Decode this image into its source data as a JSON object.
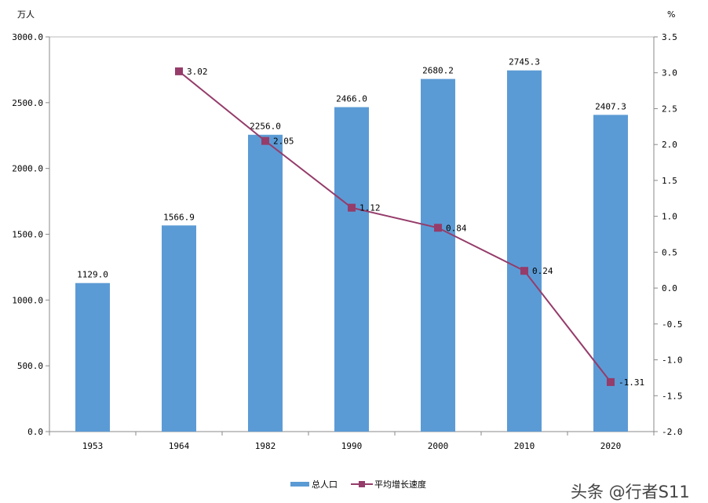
{
  "chart_data": {
    "type": "bar+line",
    "categories": [
      "1953",
      "1964",
      "1982",
      "1990",
      "2000",
      "2010",
      "2020"
    ],
    "series": [
      {
        "name": "总人口",
        "type": "bar",
        "axis": "left",
        "color": "#5b9bd5",
        "values": [
          1129.0,
          1566.9,
          2256.0,
          2466.0,
          2680.2,
          2745.3,
          2407.3
        ],
        "labels": [
          "1129.0",
          "1566.9",
          "2256.0",
          "2466.0",
          "2680.2",
          "2745.3",
          "2407.3"
        ]
      },
      {
        "name": "平均增长速度",
        "type": "line",
        "axis": "right",
        "color": "#953c6a",
        "values": [
          null,
          3.02,
          2.05,
          1.12,
          0.84,
          0.24,
          -1.31
        ],
        "labels": [
          "",
          "3.02",
          "2.05",
          "1.12",
          "0.84",
          "0.24",
          "-1.31"
        ]
      }
    ],
    "left_axis": {
      "unit": "万人",
      "ylim": [
        0,
        3000
      ],
      "ticks": [
        "0.0",
        "500.0",
        "1000.0",
        "1500.0",
        "2000.0",
        "2500.0",
        "3000.0"
      ]
    },
    "right_axis": {
      "unit": "%",
      "ylim": [
        -2.0,
        3.5
      ],
      "ticks": [
        "-2.0",
        "-1.5",
        "-1.0",
        "-0.5",
        "0.0",
        "0.5",
        "1.0",
        "1.5",
        "2.0",
        "2.5",
        "3.0",
        "3.5"
      ]
    },
    "legend": {
      "placement": "bottom",
      "items": [
        "总人口",
        "平均增长速度"
      ]
    },
    "grid": false
  },
  "watermark": "头条 @行者S11"
}
